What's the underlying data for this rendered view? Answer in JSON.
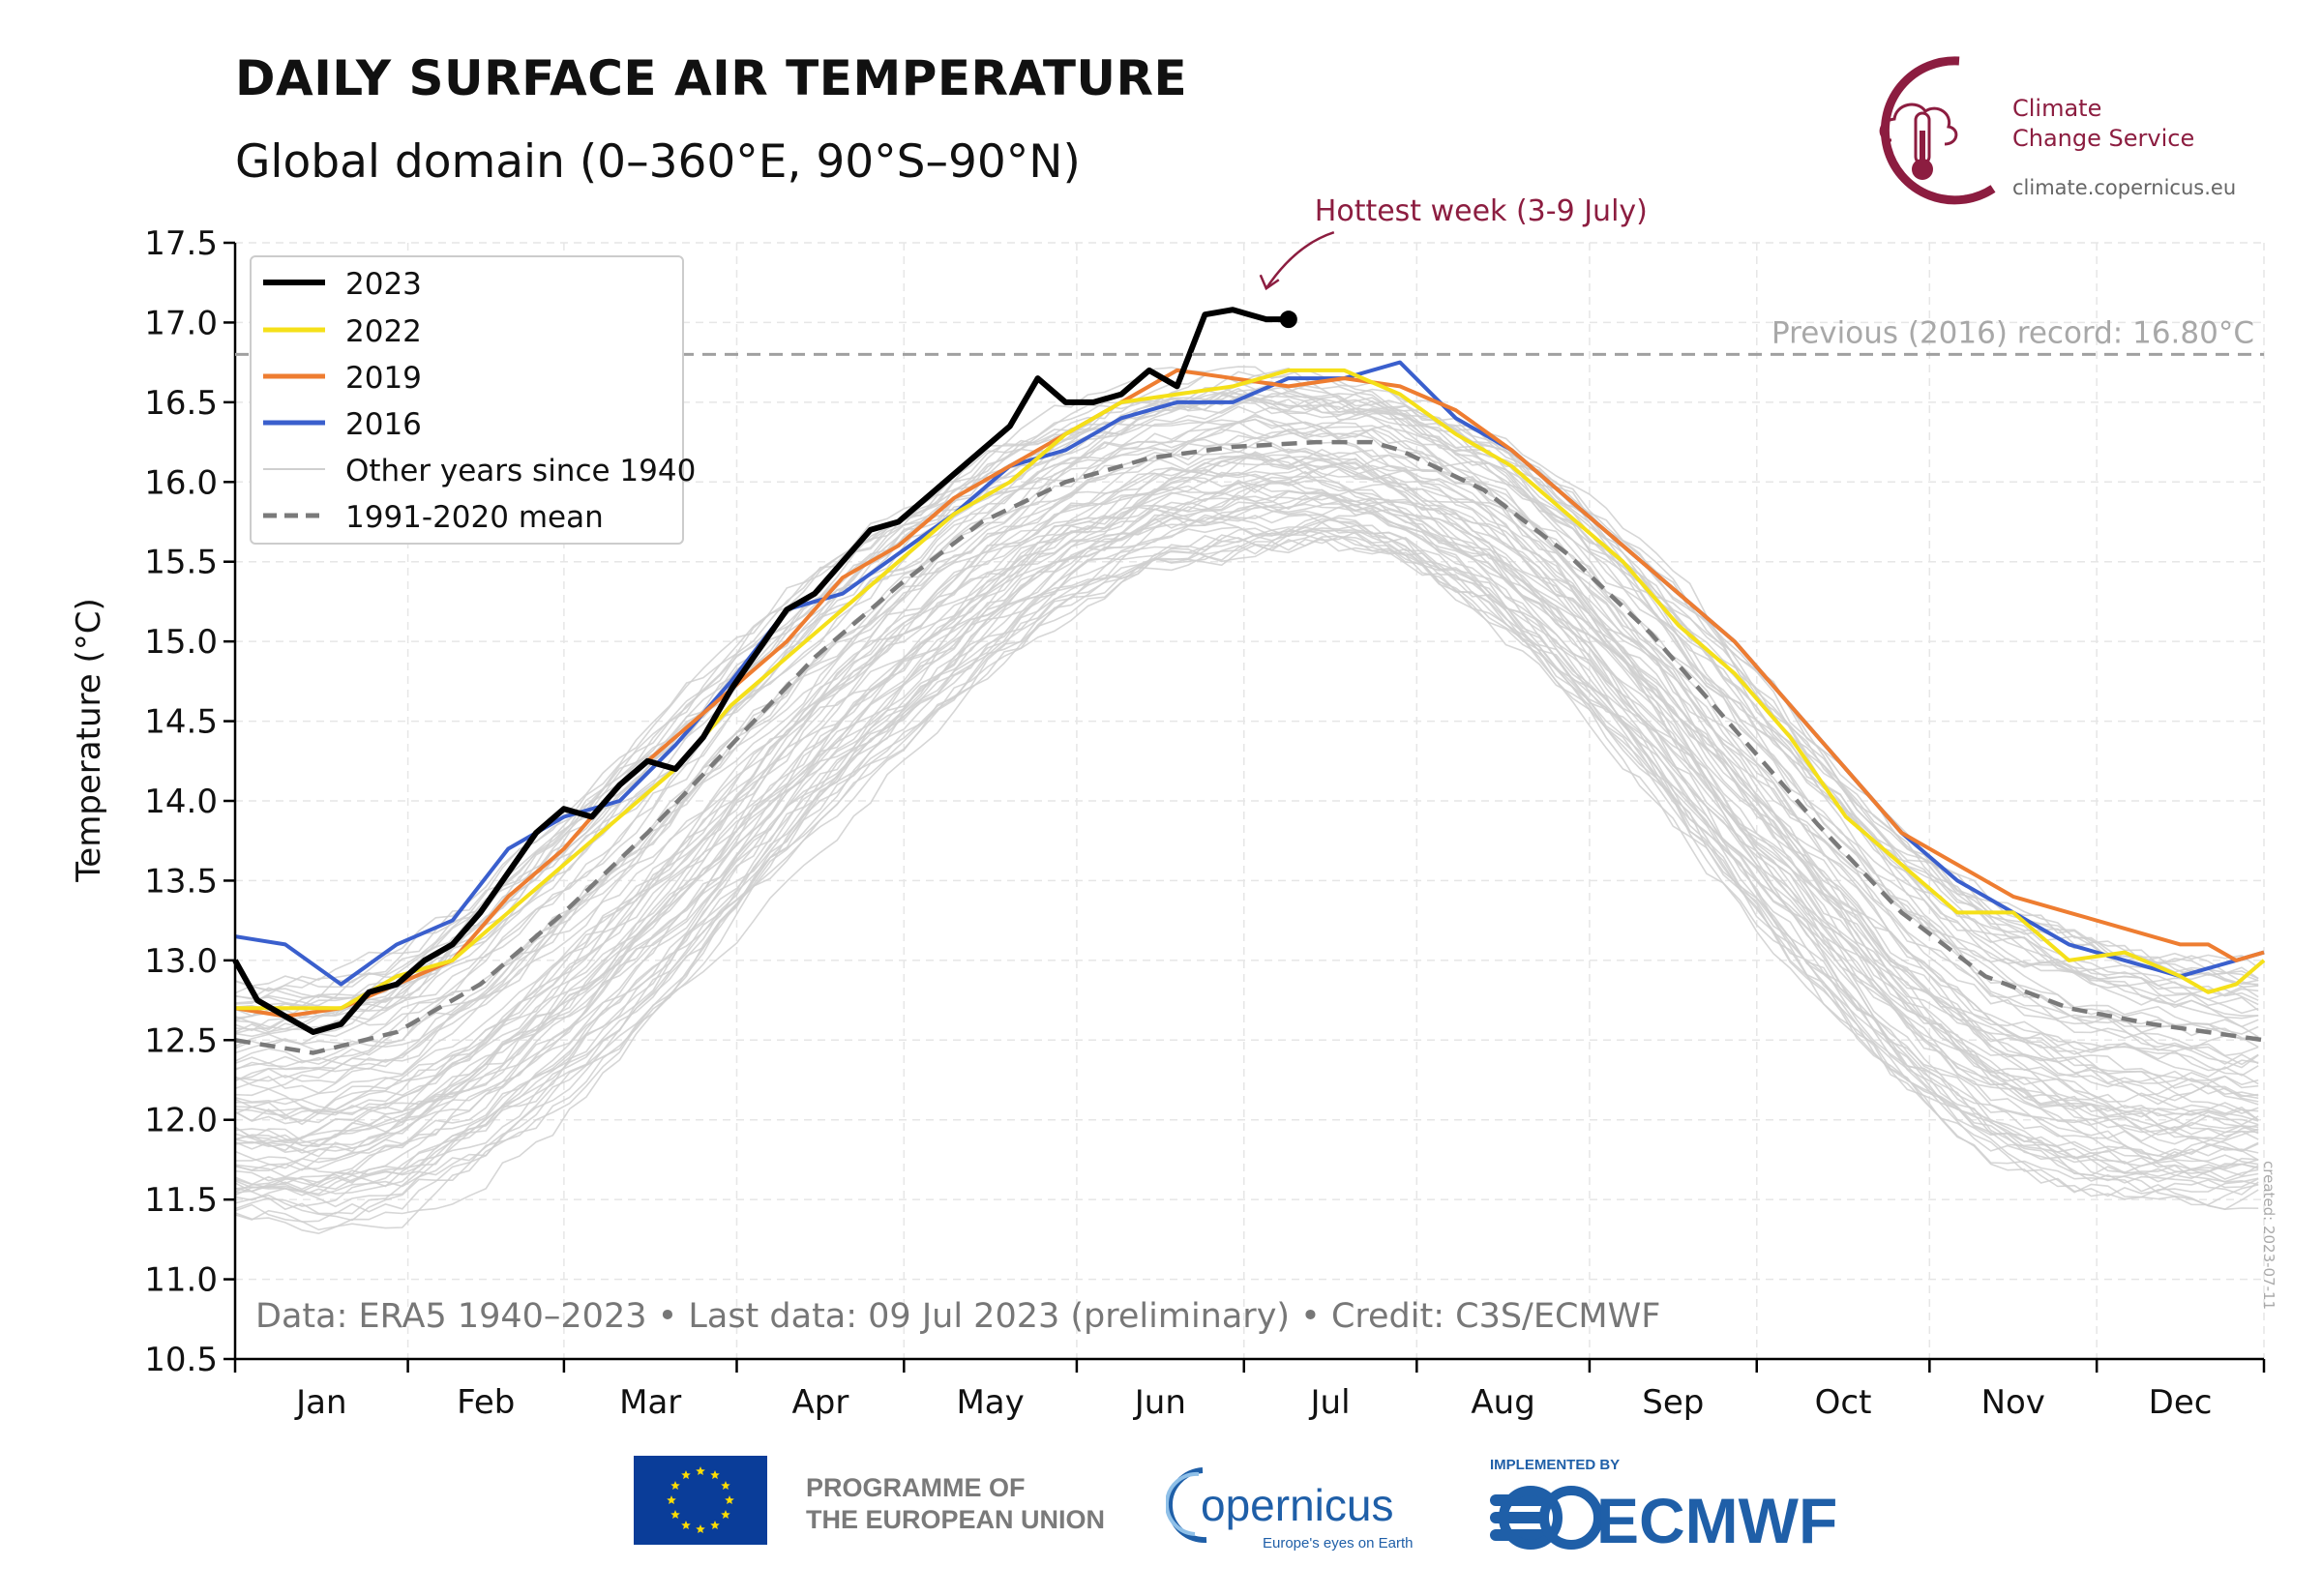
{
  "header": {
    "title": "DAILY SURFACE AIR TEMPERATURE",
    "subtitle": "Global domain (0–360°E, 90°S–90°N)"
  },
  "branding": {
    "c3s_line1": "Climate",
    "c3s_line2": "Change Service",
    "c3s_url": "climate.copernicus.eu",
    "c3s_color": "#8c1d40",
    "eu_line1": "PROGRAMME OF",
    "eu_line2": "THE EUROPEAN UNION",
    "copernicus_name": "opernicus",
    "copernicus_tagline": "Europe's eyes on Earth",
    "ecmwf_implemented": "IMPLEMENTED BY",
    "ecmwf_name": "ECMWF"
  },
  "footer_note": "Data: ERA5 1940–2023 • Last data: 09 Jul 2023 (preliminary) • Credit: C3S/ECMWF",
  "created_stamp": "created: 2023-07-11",
  "chart_data": {
    "type": "line",
    "title": "DAILY SURFACE AIR TEMPERATURE",
    "subtitle": "Global domain (0–360°E, 90°S–90°N)",
    "xlabel": "",
    "ylabel": "Temperature (°C)",
    "ylim": [
      10.5,
      17.5
    ],
    "xlim_day_of_year": [
      1,
      365
    ],
    "yticks": [
      "10.5",
      "11.0",
      "11.5",
      "12.0",
      "12.5",
      "13.0",
      "13.5",
      "14.0",
      "14.5",
      "15.0",
      "15.5",
      "16.0",
      "16.5",
      "17.0",
      "17.5"
    ],
    "month_labels": [
      "Jan",
      "Feb",
      "Mar",
      "Apr",
      "May",
      "Jun",
      "Jul",
      "Aug",
      "Sep",
      "Oct",
      "Nov",
      "Dec"
    ],
    "month_start_days": [
      1,
      32,
      60,
      91,
      121,
      152,
      182,
      213,
      244,
      274,
      305,
      335,
      365
    ],
    "grid": true,
    "legend_position": "top-left",
    "series": [
      {
        "name": "2023",
        "color": "#000000",
        "x": [
          1,
          5,
          10,
          15,
          20,
          25,
          30,
          35,
          40,
          45,
          50,
          55,
          60,
          65,
          70,
          75,
          80,
          85,
          90,
          95,
          100,
          105,
          110,
          115,
          120,
          125,
          130,
          135,
          140,
          145,
          150,
          155,
          160,
          165,
          170,
          175,
          180,
          183,
          186,
          190
        ],
        "y": [
          13.0,
          12.75,
          12.65,
          12.55,
          12.6,
          12.8,
          12.85,
          13.0,
          13.1,
          13.3,
          13.55,
          13.8,
          13.95,
          13.9,
          14.1,
          14.25,
          14.2,
          14.4,
          14.7,
          14.95,
          15.2,
          15.3,
          15.5,
          15.7,
          15.75,
          15.9,
          16.05,
          16.2,
          16.35,
          16.65,
          16.5,
          16.5,
          16.55,
          16.7,
          16.6,
          17.05,
          17.08,
          17.05,
          17.02,
          17.02
        ]
      },
      {
        "name": "2022",
        "color": "#f5e019",
        "x": [
          1,
          10,
          20,
          30,
          40,
          50,
          60,
          70,
          80,
          90,
          100,
          110,
          120,
          130,
          140,
          150,
          160,
          170,
          180,
          190,
          200,
          210,
          220,
          230,
          240,
          250,
          260,
          270,
          280,
          290,
          300,
          310,
          320,
          330,
          340,
          350,
          355,
          360,
          365
        ],
        "y": [
          12.7,
          12.7,
          12.7,
          12.9,
          13.0,
          13.3,
          13.6,
          13.9,
          14.2,
          14.6,
          14.9,
          15.2,
          15.5,
          15.8,
          16.0,
          16.3,
          16.5,
          16.55,
          16.6,
          16.7,
          16.7,
          16.55,
          16.3,
          16.1,
          15.8,
          15.5,
          15.1,
          14.8,
          14.4,
          13.9,
          13.6,
          13.3,
          13.3,
          13.0,
          13.05,
          12.9,
          12.8,
          12.85,
          13.0
        ]
      },
      {
        "name": "2019",
        "color": "#ee7d31",
        "x": [
          1,
          10,
          20,
          30,
          40,
          50,
          60,
          70,
          80,
          90,
          100,
          110,
          120,
          130,
          140,
          150,
          160,
          170,
          180,
          190,
          200,
          210,
          220,
          230,
          240,
          250,
          260,
          270,
          280,
          290,
          300,
          310,
          320,
          330,
          340,
          350,
          355,
          360,
          365
        ],
        "y": [
          12.7,
          12.65,
          12.7,
          12.85,
          13.0,
          13.4,
          13.7,
          14.1,
          14.4,
          14.7,
          15.0,
          15.4,
          15.6,
          15.9,
          16.1,
          16.3,
          16.5,
          16.7,
          16.65,
          16.6,
          16.65,
          16.6,
          16.45,
          16.2,
          15.9,
          15.6,
          15.3,
          15.0,
          14.6,
          14.2,
          13.8,
          13.6,
          13.4,
          13.3,
          13.2,
          13.1,
          13.1,
          13.0,
          13.05
        ]
      },
      {
        "name": "2016",
        "color": "#3a5fcd",
        "x": [
          1,
          10,
          20,
          30,
          40,
          50,
          60,
          70,
          80,
          90,
          100,
          110,
          120,
          130,
          140,
          150,
          160,
          170,
          180,
          190,
          200,
          210,
          220,
          230,
          240,
          250,
          260,
          270,
          280,
          290,
          300,
          310,
          320,
          330,
          340,
          350,
          355,
          360,
          365
        ],
        "y": [
          13.15,
          13.1,
          12.85,
          13.1,
          13.25,
          13.7,
          13.9,
          14.0,
          14.35,
          14.75,
          15.2,
          15.3,
          15.55,
          15.8,
          16.1,
          16.2,
          16.4,
          16.5,
          16.5,
          16.65,
          16.65,
          16.75,
          16.4,
          16.2,
          15.9,
          15.6,
          15.3,
          15.0,
          14.6,
          14.2,
          13.8,
          13.5,
          13.3,
          13.1,
          13.0,
          12.9,
          12.95,
          13.0,
          13.05
        ]
      },
      {
        "name": "1991-2020 mean",
        "color": "#7a7a7a",
        "dashed": true,
        "x": [
          1,
          15,
          30,
          45,
          60,
          75,
          90,
          105,
          120,
          135,
          150,
          165,
          180,
          195,
          205,
          210,
          225,
          240,
          255,
          270,
          285,
          300,
          315,
          330,
          345,
          365
        ],
        "y": [
          12.5,
          12.42,
          12.55,
          12.85,
          13.3,
          13.8,
          14.35,
          14.9,
          15.35,
          15.75,
          16.0,
          16.15,
          16.22,
          16.25,
          16.25,
          16.2,
          15.95,
          15.55,
          15.05,
          14.45,
          13.85,
          13.3,
          12.9,
          12.7,
          12.6,
          12.5
        ]
      }
    ],
    "other_years": {
      "name": "Other years since 1940",
      "color": "#cfcfcf",
      "x": [
        1,
        15,
        30,
        45,
        60,
        75,
        90,
        105,
        120,
        135,
        150,
        165,
        180,
        195,
        205,
        210,
        225,
        240,
        255,
        270,
        285,
        300,
        315,
        330,
        345,
        365
      ],
      "envelope_low": [
        11.4,
        11.35,
        11.45,
        11.7,
        12.1,
        12.6,
        13.2,
        13.8,
        14.3,
        14.8,
        15.2,
        15.45,
        15.55,
        15.6,
        15.55,
        15.5,
        15.2,
        14.7,
        14.1,
        13.4,
        12.8,
        12.2,
        11.8,
        11.6,
        11.5,
        11.5
      ],
      "envelope_high": [
        13.0,
        13.05,
        13.2,
        13.6,
        14.1,
        14.6,
        15.1,
        15.6,
        16.0,
        16.3,
        16.55,
        16.75,
        16.8,
        16.75,
        16.7,
        16.65,
        16.45,
        16.1,
        15.65,
        15.1,
        14.5,
        13.95,
        13.55,
        13.35,
        13.2,
        13.1
      ]
    },
    "record_line": {
      "y": 16.8,
      "label": "Previous (2016) record: 16.80°C",
      "color": "#a0a0a0"
    },
    "annotation": {
      "text": "Hottest week (3-9 July)",
      "x": 186,
      "y": 17.08,
      "color": "#8c1d40"
    }
  }
}
